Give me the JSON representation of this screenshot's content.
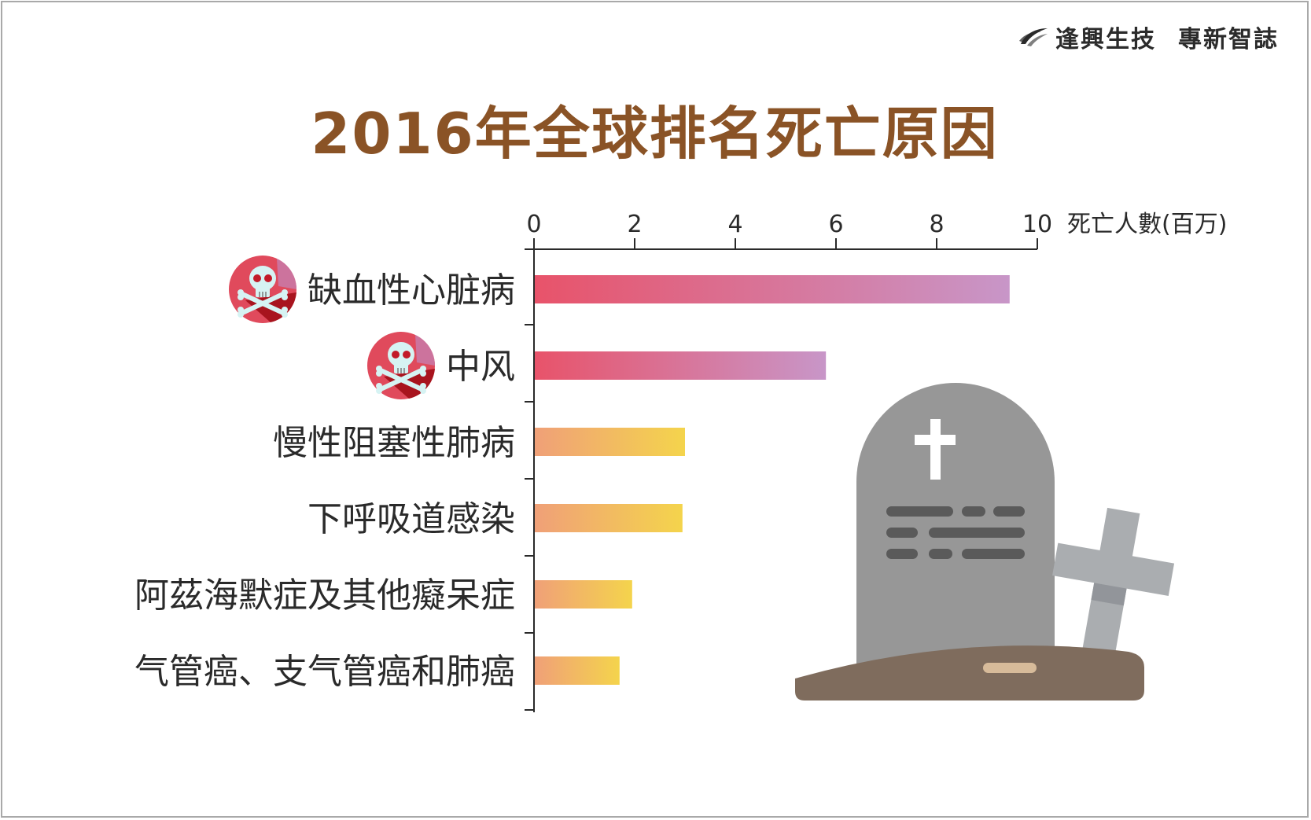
{
  "brand": {
    "name": "逢興生技",
    "subtitle": "專新智誌",
    "logo_icon": "swoosh-logo-icon"
  },
  "chart_data": {
    "type": "bar",
    "orientation": "horizontal",
    "title": "2016年全球排名死亡原因",
    "xlabel": "死亡人數(百万)",
    "xlim": [
      0,
      10
    ],
    "xticks": [
      0,
      2,
      4,
      6,
      8,
      10
    ],
    "categories": [
      "缺血性心脏病",
      "中风",
      "慢性阻塞性肺病",
      "下呼吸道感染",
      "阿茲海默症及其他癡呆症",
      "气管癌、支气管癌和肺癌"
    ],
    "values": [
      9.45,
      5.8,
      3.0,
      2.95,
      1.95,
      1.7
    ],
    "highlight": [
      true,
      true,
      false,
      false,
      false,
      false
    ],
    "highlight_icon": "skull-crossbones-icon",
    "colors": {
      "highlight_start": "#e8536a",
      "highlight_end": "#c896c8",
      "normal_start": "#f0a078",
      "normal_end": "#f4d44c"
    },
    "decoration": "tombstone-illustration"
  }
}
